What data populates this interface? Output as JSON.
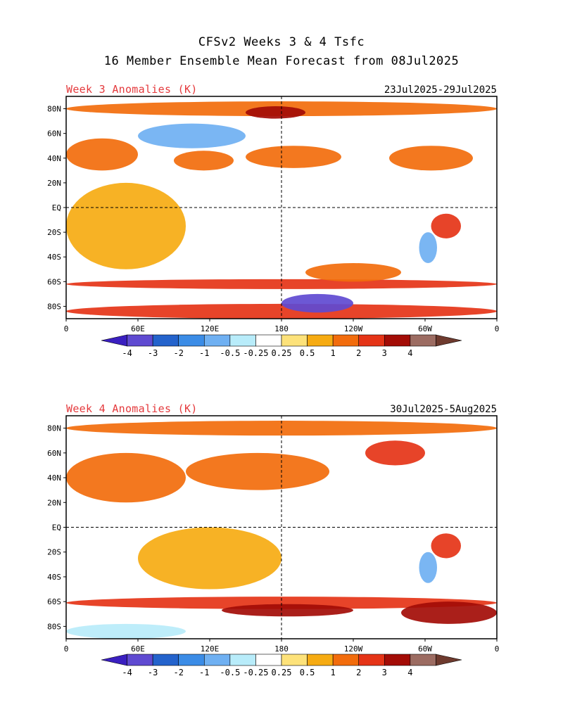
{
  "header": {
    "title_line1": "CFSv2 Weeks 3 & 4 Tsfc",
    "title_line2": "16 Member Ensemble Mean Forecast from 08Jul2025"
  },
  "chart_data": [
    {
      "type": "heatmap",
      "title": "Week 3 Anomalies (K)",
      "date_range": "23Jul2025-29Jul2025",
      "x_axis": {
        "range": [
          0,
          360
        ],
        "ticks": [
          "0",
          "60E",
          "120E",
          "180",
          "120W",
          "60W",
          "0"
        ]
      },
      "y_axis": {
        "range": [
          -90,
          90
        ],
        "ticks": [
          "80N",
          "60N",
          "40N",
          "20N",
          "EQ",
          "20S",
          "40S",
          "60S",
          "80S"
        ]
      },
      "reference_lines": [
        "EQ",
        "180"
      ],
      "anomaly_regions": [
        {
          "lon": [
            0,
            360
          ],
          "lat": [
            -90,
            -78
          ],
          "value": 2.2
        },
        {
          "lon": [
            0,
            360
          ],
          "lat": [
            -66,
            -58
          ],
          "value": 2.0
        },
        {
          "lon": [
            0,
            360
          ],
          "lat": [
            74,
            86
          ],
          "value": 1.6
        },
        {
          "lon": [
            150,
            200
          ],
          "lat": [
            72,
            82
          ],
          "value": 3.2
        },
        {
          "lon": [
            60,
            150
          ],
          "lat": [
            48,
            68
          ],
          "value": -0.8
        },
        {
          "lon": [
            0,
            60
          ],
          "lat": [
            30,
            56
          ],
          "value": 1.5
        },
        {
          "lon": [
            90,
            140
          ],
          "lat": [
            30,
            46
          ],
          "value": 1.3
        },
        {
          "lon": [
            150,
            230
          ],
          "lat": [
            32,
            50
          ],
          "value": 1.4
        },
        {
          "lon": [
            210,
            300
          ],
          "lat": [
            -20,
            10
          ],
          "value": -0.25
        },
        {
          "lon": [
            305,
            330
          ],
          "lat": [
            -25,
            -5
          ],
          "value": 2.0
        },
        {
          "lon": [
            295,
            310
          ],
          "lat": [
            -45,
            -20
          ],
          "value": -1.0
        },
        {
          "lon": [
            0,
            100
          ],
          "lat": [
            -50,
            20
          ],
          "value": 0.6
        },
        {
          "lon": [
            270,
            340
          ],
          "lat": [
            30,
            50
          ],
          "value": 1.2
        },
        {
          "lon": [
            180,
            240
          ],
          "lat": [
            -85,
            -70
          ],
          "value": -3.2
        },
        {
          "lon": [
            200,
            280
          ],
          "lat": [
            -60,
            -45
          ],
          "value": 1.1
        }
      ]
    },
    {
      "type": "heatmap",
      "title": "Week 4 Anomalies (K)",
      "date_range": "30Jul2025-5Aug2025",
      "x_axis": {
        "range": [
          0,
          360
        ],
        "ticks": [
          "0",
          "60E",
          "120E",
          "180",
          "120W",
          "60W",
          "0"
        ]
      },
      "y_axis": {
        "range": [
          -90,
          90
        ],
        "ticks": [
          "80N",
          "60N",
          "40N",
          "20N",
          "EQ",
          "20S",
          "40S",
          "60S",
          "80S"
        ]
      },
      "reference_lines": [
        "EQ",
        "180"
      ],
      "anomaly_regions": [
        {
          "lon": [
            0,
            360
          ],
          "lat": [
            -66,
            -56
          ],
          "value": 2.2
        },
        {
          "lon": [
            130,
            240
          ],
          "lat": [
            -72,
            -62
          ],
          "value": 3.2
        },
        {
          "lon": [
            280,
            360
          ],
          "lat": [
            -78,
            -60
          ],
          "value": 3.2
        },
        {
          "lon": [
            0,
            100
          ],
          "lat": [
            -90,
            -78
          ],
          "value": -0.5
        },
        {
          "lon": [
            0,
            360
          ],
          "lat": [
            74,
            86
          ],
          "value": 1.8
        },
        {
          "lon": [
            0,
            100
          ],
          "lat": [
            20,
            60
          ],
          "value": 1.3
        },
        {
          "lon": [
            100,
            220
          ],
          "lat": [
            30,
            60
          ],
          "value": 1.2
        },
        {
          "lon": [
            250,
            300
          ],
          "lat": [
            50,
            70
          ],
          "value": 2.2
        },
        {
          "lon": [
            210,
            300
          ],
          "lat": [
            -15,
            15
          ],
          "value": 0.1
        },
        {
          "lon": [
            305,
            330
          ],
          "lat": [
            -25,
            -5
          ],
          "value": 2.0
        },
        {
          "lon": [
            295,
            310
          ],
          "lat": [
            -45,
            -20
          ],
          "value": -1.0
        },
        {
          "lon": [
            60,
            180
          ],
          "lat": [
            -50,
            0
          ],
          "value": 0.6
        }
      ]
    }
  ],
  "colorbar": {
    "labels": [
      "-4",
      "-3",
      "-2",
      "-1",
      "-0.5",
      "-0.25",
      "0.25",
      "0.5",
      "1",
      "2",
      "3",
      "4"
    ],
    "colors": [
      "#3a1fc0",
      "#5f4ad1",
      "#2463cc",
      "#3b8ce6",
      "#6fb0f2",
      "#b8ecfa",
      "#ffffff",
      "#fde27a",
      "#f6ab12",
      "#f26c0c",
      "#e53417",
      "#a30c06",
      "#9c6c62",
      "#6e3a2e"
    ]
  }
}
